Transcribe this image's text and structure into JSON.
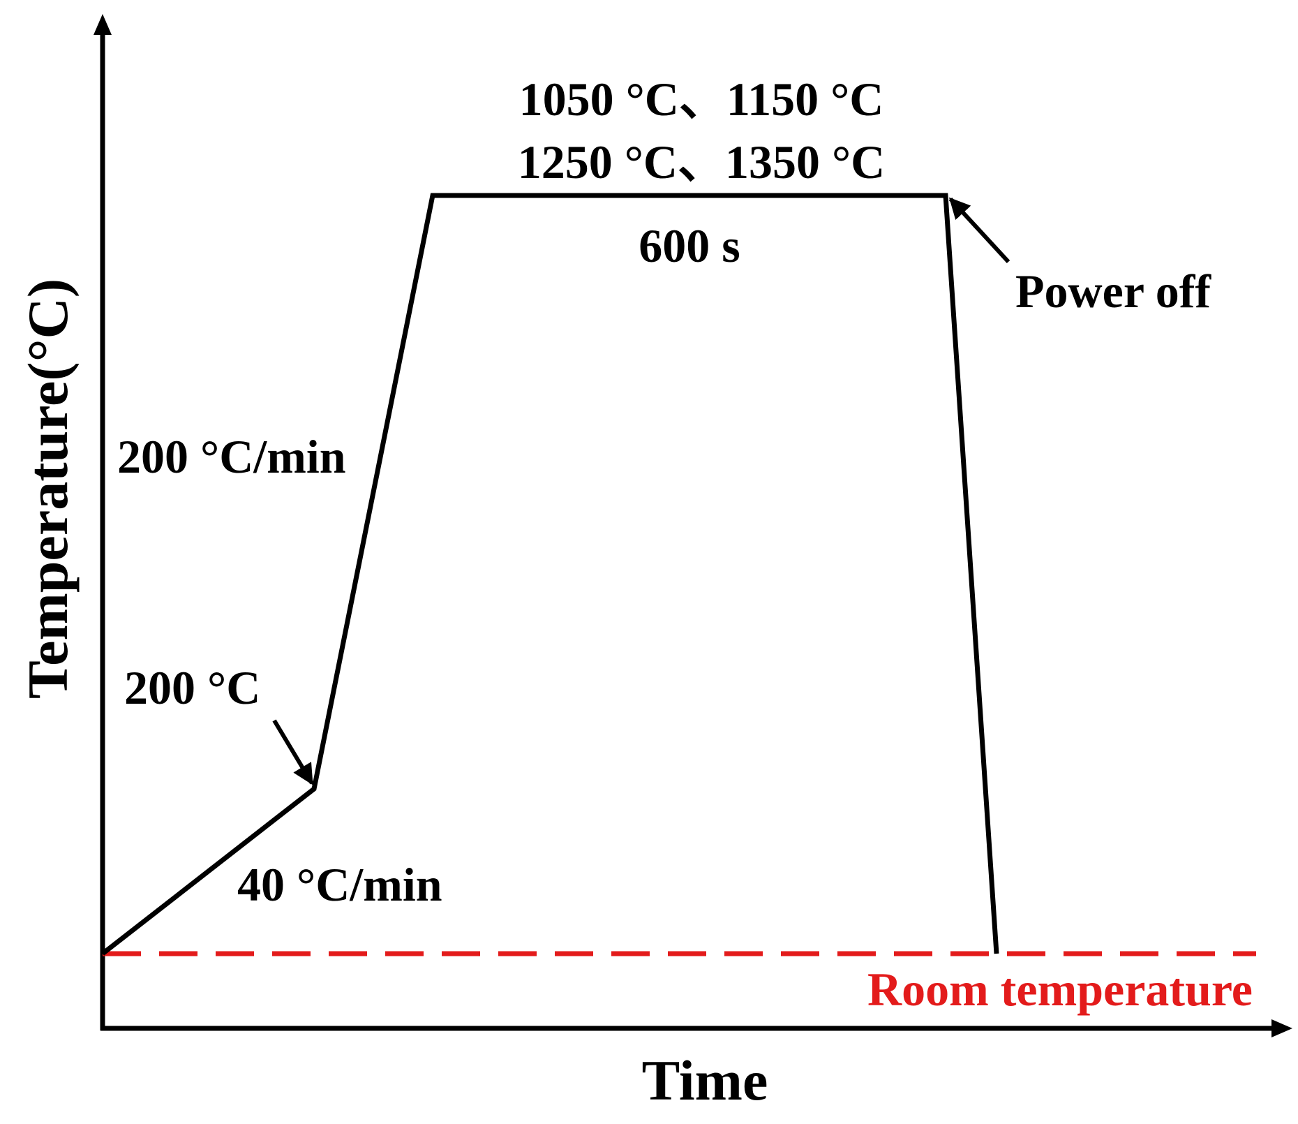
{
  "axes": {
    "x_label": "Time",
    "y_label": "Temperature(°C)"
  },
  "annotations": {
    "hold_temps_line1": "1050 °C、1150 °C",
    "hold_temps_line2": "1250 °C、1350 °C",
    "hold_time": "600 s",
    "power_off": "Power off",
    "fast_rate": "200 °C/min",
    "intermediate_temp": "200 °C",
    "slow_rate": "40 °C/min",
    "room_temp": "Room temperature"
  },
  "colors": {
    "curve": "#000000",
    "room_temp_line": "#e31b1b"
  }
}
